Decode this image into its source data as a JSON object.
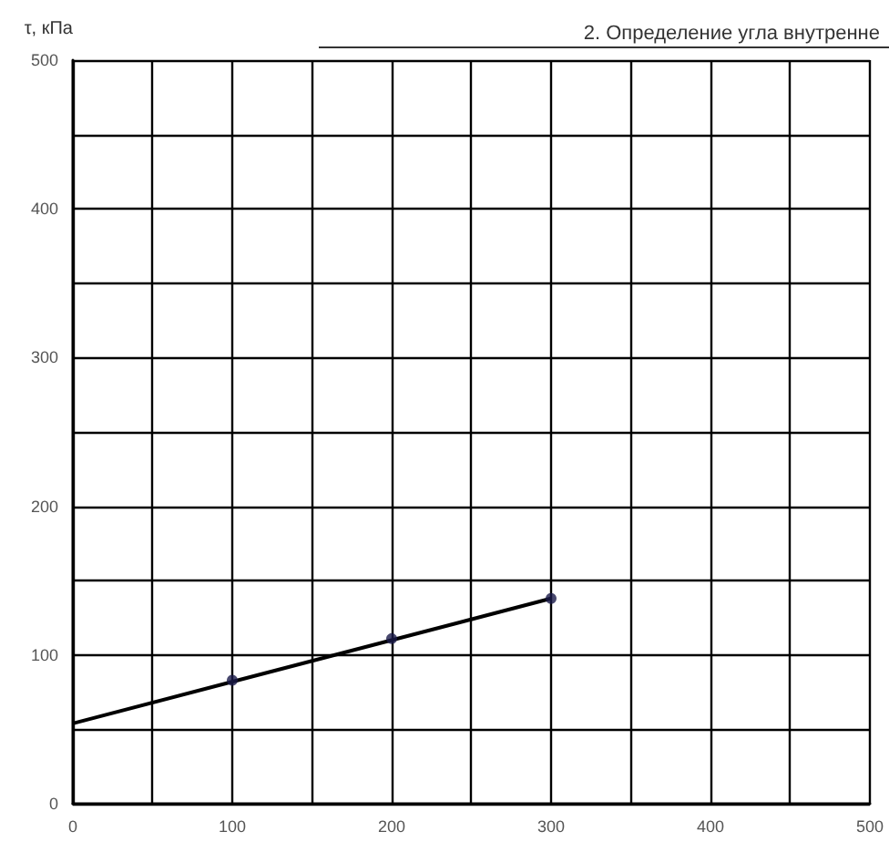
{
  "chart_data": {
    "type": "scatter",
    "title": "2. Определение угла внутренне",
    "ylabel": "τ, кПа",
    "series": [
      {
        "type": "line",
        "color": "#000000",
        "x": [
          0,
          300
        ],
        "values": [
          54,
          138
        ],
        "marker": "none"
      },
      {
        "color": "#1a1a4a",
        "x": [
          100,
          200,
          300
        ],
        "values": [
          83,
          111,
          138
        ],
        "marker": "circle"
      }
    ],
    "xlim": [
      0,
      500
    ],
    "ylim": [
      0,
      500
    ],
    "xticks": [
      0,
      {
        "value": 50,
        "label": null
      },
      100,
      {
        "value": 150,
        "label": null
      },
      200,
      {
        "value": 250,
        "label": null
      },
      300,
      {
        "value": 350,
        "label": null
      },
      400,
      {
        "value": 450,
        "label": null
      },
      500
    ],
    "yticks": [
      0,
      {
        "value": 50,
        "label": null
      },
      100,
      {
        "value": 150,
        "label": null
      },
      200,
      {
        "value": 250,
        "label": null
      },
      300,
      {
        "value": 350,
        "label": null
      },
      400,
      {
        "value": 450,
        "label": null
      },
      500
    ],
    "grid": true
  }
}
